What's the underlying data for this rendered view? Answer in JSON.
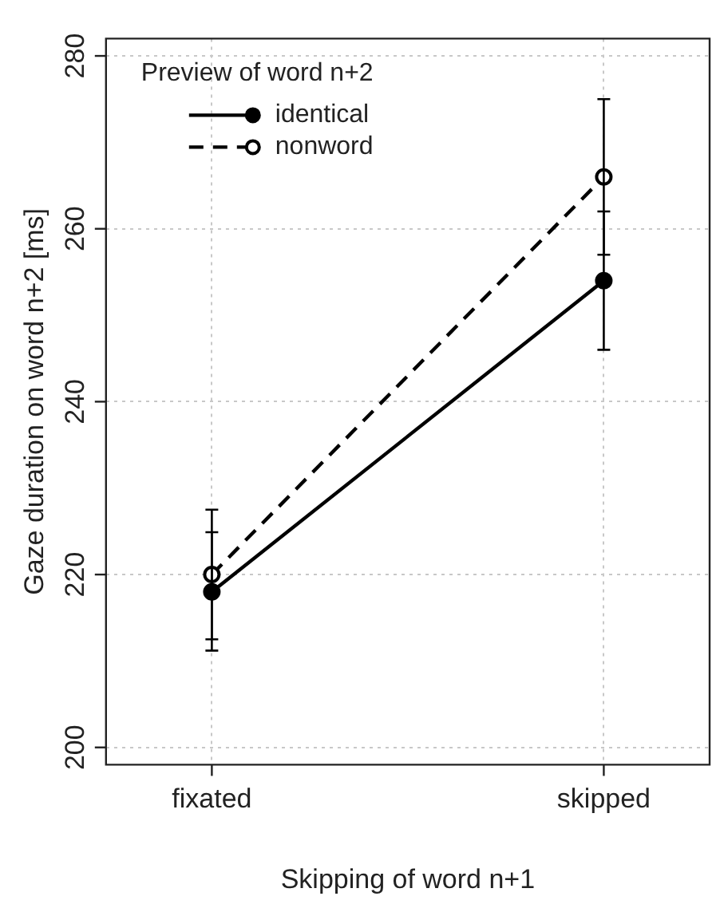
{
  "chart_data": {
    "type": "line",
    "xlabel": "Skipping of word n+1",
    "ylabel": "Gaze duration on word n+2 [ms]",
    "legend_title": "Preview of word n+2",
    "categories": [
      "fixated",
      "skipped"
    ],
    "series": [
      {
        "name": "identical",
        "color": "#000000",
        "line_style": "solid",
        "values": [
          218,
          254
        ],
        "errors": [
          [
            211.2,
            224.9
          ],
          [
            246,
            262
          ]
        ]
      },
      {
        "name": "nonword",
        "color": "#000000",
        "line_style": "dashed",
        "values": [
          220,
          266
        ],
        "errors": [
          [
            212.5,
            227.5
          ],
          [
            257,
            275
          ]
        ]
      }
    ],
    "ylim": [
      198,
      282
    ],
    "yticks": [
      200,
      220,
      240,
      260,
      280
    ],
    "grid": true,
    "legend": "top left",
    "marker": "circle"
  }
}
